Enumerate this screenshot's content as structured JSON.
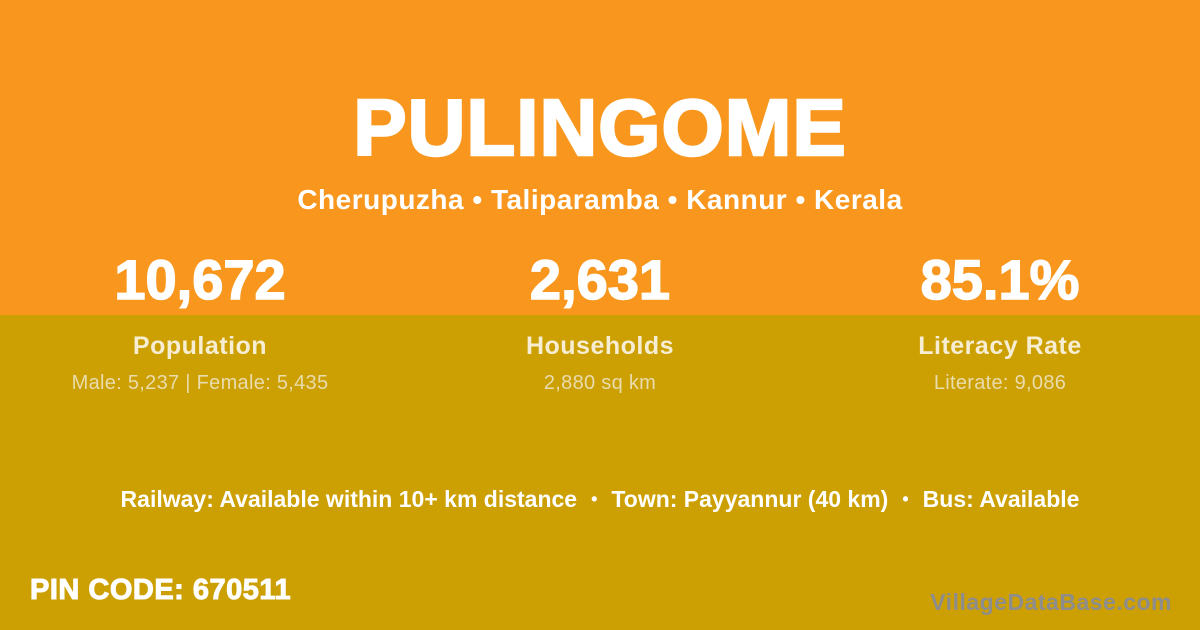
{
  "theme": {
    "orange": "#F8961D",
    "mustard": "#CC9F02",
    "cream": "#F6EDD3",
    "cream_dim": "#E9DCAD",
    "white": "#FFFFFF",
    "watermark_gray": "#8D8D8D"
  },
  "header": {
    "title": "PULINGOME",
    "subtitle": "Cherupuzha • Taliparamba • Kannur • Kerala"
  },
  "stats": [
    {
      "value": "10,672",
      "label": "Population",
      "detail": "Male: 5,237 | Female: 5,435"
    },
    {
      "value": "2,631",
      "label": "Households",
      "detail": "2,880 sq km"
    },
    {
      "value": "85.1%",
      "label": "Literacy Rate",
      "detail": "Literate: 9,086"
    }
  ],
  "transport": {
    "railway": "Railway: Available within 10+ km distance",
    "separator": "•",
    "town": "Town: Payyannur (40 km)",
    "bus": "Bus: Available"
  },
  "footer": {
    "pin_code": "PIN CODE: 670511",
    "watermark": "VillageDataBase.com"
  }
}
